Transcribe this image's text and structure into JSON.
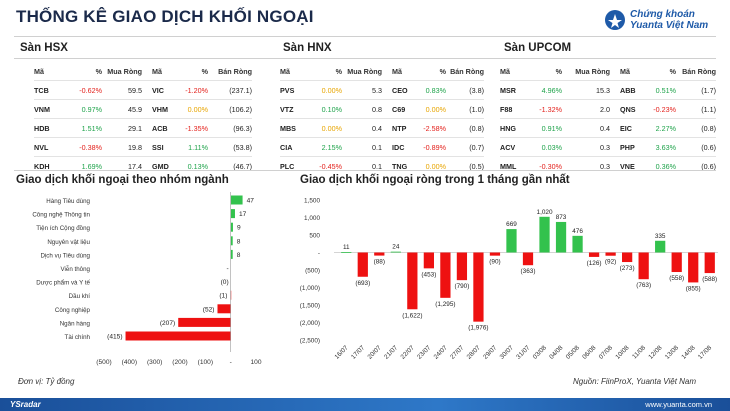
{
  "title": "THỐNG KÊ GIAO DỊCH KHỐI NGOẠI",
  "logo": {
    "line1": "Chứng khoán",
    "line2": "Yuanta Việt Nam"
  },
  "exchanges": [
    {
      "name": "Sàn HSX",
      "headers": [
        "Mã",
        "%",
        "Mua Ròng",
        "Mã",
        "%",
        "Bán Ròng"
      ],
      "rows": [
        [
          "TCB",
          "-0.62%",
          "59.5",
          "VIC",
          "-1.20%",
          "(237.1)"
        ],
        [
          "VNM",
          "0.97%",
          "45.9",
          "VHM",
          "0.00%",
          "(106.2)"
        ],
        [
          "HDB",
          "1.51%",
          "29.1",
          "ACB",
          "-1.35%",
          "(96.3)"
        ],
        [
          "NVL",
          "-0.38%",
          "19.8",
          "SSI",
          "1.11%",
          "(53.8)"
        ],
        [
          "KDH",
          "1.69%",
          "17.4",
          "GMD",
          "0.13%",
          "(46.7)"
        ]
      ]
    },
    {
      "name": "Sàn HNX",
      "headers": [
        "Mã",
        "%",
        "Mua Ròng",
        "Mã",
        "%",
        "Bán Ròng"
      ],
      "rows": [
        [
          "PVS",
          "0.00%",
          "5.3",
          "CEO",
          "0.83%",
          "(3.8)"
        ],
        [
          "VTZ",
          "0.10%",
          "0.8",
          "C69",
          "0.00%",
          "(1.0)"
        ],
        [
          "MBS",
          "0.00%",
          "0.4",
          "NTP",
          "-2.58%",
          "(0.8)"
        ],
        [
          "CIA",
          "2.15%",
          "0.1",
          "IDC",
          "-0.89%",
          "(0.7)"
        ],
        [
          "PLC",
          "-0.45%",
          "0.1",
          "TNG",
          "0.00%",
          "(0.5)"
        ]
      ]
    },
    {
      "name": "Sàn UPCOM",
      "headers": [
        "Mã",
        "%",
        "Mua Ròng",
        "Mã",
        "%",
        "Bán Ròng"
      ],
      "rows": [
        [
          "MSR",
          "4.96%",
          "15.3",
          "ABB",
          "0.51%",
          "(1.7)"
        ],
        [
          "F88",
          "-1.32%",
          "2.0",
          "QNS",
          "-0.23%",
          "(1.1)"
        ],
        [
          "HNG",
          "0.91%",
          "0.4",
          "EIC",
          "2.27%",
          "(0.8)"
        ],
        [
          "ACV",
          "0.03%",
          "0.3",
          "PHP",
          "3.63%",
          "(0.6)"
        ],
        [
          "MML",
          "-0.30%",
          "0.3",
          "VNE",
          "0.36%",
          "(0.6)"
        ]
      ]
    }
  ],
  "colors": {
    "positive": "#1ea34a",
    "negative": "#e3211c",
    "zero": "#e8a500",
    "bar_pos": "#33c24d",
    "bar_neg": "#ee1111"
  },
  "chart_data": [
    {
      "type": "bar",
      "orientation": "horizontal",
      "title": "Giao dịch khối ngoại theo nhóm ngành",
      "categories": [
        "Hàng Tiêu dùng",
        "Công nghệ Thông tin",
        "Tiện ích Cộng đồng",
        "Nguyên vật liệu",
        "Dịch vụ Tiêu dùng",
        "Viễn thông",
        "Dược phẩm và Y tế",
        "Dầu khí",
        "Công nghiệp",
        "Ngân hàng",
        "Tài chính"
      ],
      "values": [
        47,
        17,
        9,
        8,
        8,
        0,
        0,
        -1,
        -52,
        -207,
        -415
      ],
      "data_labels": [
        "47",
        "17",
        "9",
        "8",
        "8",
        "-",
        "(0)",
        "(1)",
        "(52)",
        "(207)",
        "(415)"
      ],
      "xlim": [
        -500,
        100
      ],
      "xticks": [
        "(500)",
        "(400)",
        "(300)",
        "(200)",
        "(100)",
        "-",
        "100"
      ]
    },
    {
      "type": "bar",
      "title": "Giao dịch khối ngoại ròng trong 1 tháng gần nhất",
      "categories": [
        "16/07",
        "17/07",
        "20/07",
        "21/07",
        "22/07",
        "23/07",
        "24/07",
        "27/07",
        "28/07",
        "29/07",
        "30/07",
        "31/07",
        "03/08",
        "04/08",
        "05/08",
        "06/08",
        "07/08",
        "10/08",
        "11/08",
        "12/08",
        "13/08",
        "14/08",
        "17/08"
      ],
      "values": [
        11,
        -693,
        -88,
        24,
        -1622,
        -453,
        -1295,
        -790,
        -1976,
        -90,
        669,
        -363,
        1020,
        873,
        476,
        -126,
        -92,
        -273,
        -763,
        335,
        -558,
        -855,
        -588
      ],
      "data_labels": [
        "11",
        "(693)",
        "(88)",
        "24",
        "(1,622)",
        "(453)",
        "(1,295)",
        "(790)",
        "(1,976)",
        "(90)",
        "669",
        "(363)",
        "1,020",
        "873",
        "476",
        "(126)",
        "(92)",
        "(273)",
        "(763)",
        "335",
        "(558)",
        "(855)",
        "(588)"
      ],
      "ylim": [
        -2500,
        1500
      ],
      "yticks": [
        "1,500",
        "1,000",
        "500",
        "-",
        "(500)",
        "(1,000)",
        "(1,500)",
        "(2,000)",
        "(2,500)"
      ]
    }
  ],
  "footer": {
    "unit": "Đơn vị: Tỷ đồng",
    "source": "Nguồn: FiinProX, Yuanta Việt Nam",
    "brand": "YSradar",
    "website": "www.yuanta.com.vn"
  }
}
